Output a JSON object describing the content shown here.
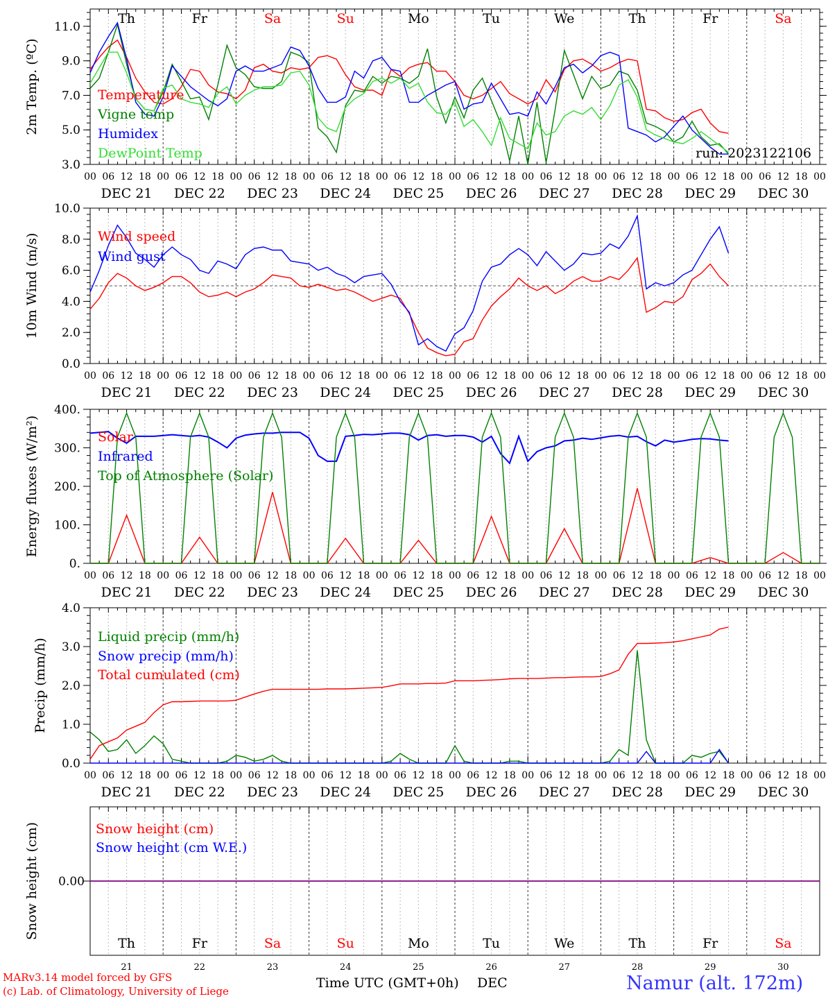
{
  "days": [
    {
      "abbr": "Th",
      "label": "DEC 21",
      "num": "21",
      "weekend": false
    },
    {
      "abbr": "Fr",
      "label": "DEC 22",
      "num": "22",
      "weekend": false
    },
    {
      "abbr": "Sa",
      "label": "DEC 23",
      "num": "23",
      "weekend": true
    },
    {
      "abbr": "Su",
      "label": "DEC 24",
      "num": "24",
      "weekend": true
    },
    {
      "abbr": "Mo",
      "label": "DEC 25",
      "num": "25",
      "weekend": false
    },
    {
      "abbr": "Tu",
      "label": "DEC 26",
      "num": "26",
      "weekend": false
    },
    {
      "abbr": "We",
      "label": "DEC 27",
      "num": "27",
      "weekend": false
    },
    {
      "abbr": "Th",
      "label": "DEC 28",
      "num": "28",
      "weekend": false
    },
    {
      "abbr": "Fr",
      "label": "DEC 29",
      "num": "29",
      "weekend": false
    },
    {
      "abbr": "Sa",
      "label": "DEC 30",
      "num": "30",
      "weekend": true
    }
  ],
  "hour_ticks": [
    "00",
    "06",
    "12",
    "18"
  ],
  "last_tick": "00",
  "colors": {
    "weekday": "#000000",
    "weekend": "#ff0000",
    "red": "#ff0000",
    "green": "#008000",
    "blue": "#0000ff",
    "lightgreen": "#33dd33",
    "purple": "#800080",
    "title": "#3333ff"
  },
  "footer": {
    "model": "MARv3.14 model forced by GFS",
    "credit": "(c) Lab. of Climatology, University of Liege",
    "xlabel": "Time UTC (GMT+0h)",
    "month": "DEC",
    "location": "Namur (alt. 172m)"
  },
  "chart_data": [
    {
      "type": "line",
      "ylabel": "2m Temp. (ºC)",
      "ylim": [
        3,
        12
      ],
      "yticks": [
        "3.0",
        "5.0",
        "7.0",
        "9.0",
        "11.0"
      ],
      "annotation": "run: 2023122106",
      "x_step_hours": 3,
      "series": [
        {
          "name": "Temperature",
          "color": "red",
          "values": [
            8.5,
            9.2,
            9.8,
            10.2,
            9.2,
            8.0,
            7.2,
            6.6,
            6.5,
            6.8,
            7.5,
            8.5,
            8.4,
            7.6,
            7.2,
            7.1,
            6.8,
            7.3,
            8.6,
            8.8,
            8.4,
            8.3,
            8.6,
            8.5,
            8.6,
            9.2,
            9.3,
            9.1,
            8.2,
            7.5,
            7.3,
            7.3,
            7.0,
            8.5,
            8.1,
            8.6,
            8.8,
            8.9,
            8.4,
            8.4,
            7.8,
            7.0,
            6.8,
            7.0,
            7.4,
            7.8,
            7.1,
            6.8,
            6.5,
            6.8,
            7.9,
            7.2,
            8.5,
            9.0,
            9.1,
            8.8,
            8.4,
            8.6,
            8.9,
            9.1,
            9.0,
            6.2,
            6.1,
            5.7,
            5.5,
            5.6,
            6.0,
            6.2,
            5.4,
            4.9,
            4.8
          ]
        },
        {
          "name": "Vigne temp",
          "color": "green",
          "values": [
            7.4,
            8.0,
            9.5,
            11.1,
            8.8,
            6.8,
            6.2,
            6.1,
            7.2,
            8.8,
            7.8,
            6.8,
            6.9,
            5.6,
            7.6,
            9.9,
            8.6,
            8.2,
            7.5,
            7.4,
            7.4,
            7.8,
            9.5,
            9.3,
            8.9,
            5.1,
            4.6,
            3.7,
            6.4,
            7.3,
            7.2,
            8.1,
            7.7,
            8.1,
            8.0,
            7.7,
            8.1,
            9.7,
            6.9,
            5.4,
            6.9,
            5.7,
            7.3,
            8.0,
            6.7,
            5.4,
            3.2,
            5.8,
            2.9,
            6.6,
            3.1,
            6.2,
            9.6,
            8.2,
            6.8,
            8.1,
            7.4,
            7.6,
            8.4,
            8.2,
            7.3,
            5.4,
            5.2,
            4.9,
            4.3,
            4.6,
            5.5,
            4.6,
            4.1,
            4.2,
            3.6
          ]
        },
        {
          "name": "Humidex",
          "color": "blue",
          "values": [
            8.3,
            9.5,
            10.4,
            11.2,
            9.1,
            6.6,
            5.9,
            5.8,
            6.9,
            8.7,
            8.1,
            7.5,
            7.1,
            6.7,
            6.4,
            6.8,
            8.4,
            8.7,
            8.4,
            8.4,
            8.6,
            8.8,
            9.8,
            9.6,
            8.7,
            7.4,
            6.6,
            6.6,
            6.9,
            8.4,
            8.0,
            9.0,
            9.2,
            8.5,
            8.4,
            6.6,
            6.6,
            7.0,
            7.3,
            7.6,
            7.8,
            6.2,
            6.5,
            6.6,
            7.7,
            6.8,
            5.9,
            6.0,
            5.8,
            7.2,
            6.5,
            7.5,
            8.6,
            8.8,
            8.3,
            8.7,
            9.3,
            9.5,
            9.3,
            5.1,
            4.9,
            4.7,
            4.3,
            4.6,
            5.2,
            5.8,
            5.0,
            4.5,
            4.0,
            3.6,
            3.6
          ]
        },
        {
          "name": "DewPoint Temp",
          "color": "lightgreen",
          "values": [
            7.7,
            8.6,
            9.5,
            9.5,
            8.3,
            6.8,
            6.2,
            6.1,
            7.4,
            7.6,
            6.8,
            6.6,
            6.5,
            6.3,
            7.1,
            7.5,
            6.5,
            7.0,
            7.3,
            7.5,
            7.5,
            7.6,
            8.3,
            8.4,
            7.6,
            5.7,
            5.1,
            4.9,
            6.3,
            6.8,
            7.1,
            7.8,
            8.0,
            7.7,
            8.0,
            7.4,
            7.7,
            6.6,
            6.0,
            5.9,
            6.6,
            5.2,
            5.6,
            4.9,
            4.1,
            5.7,
            4.5,
            4.2,
            3.9,
            5.4,
            4.7,
            4.9,
            5.8,
            6.1,
            5.9,
            6.3,
            5.6,
            6.4,
            7.6,
            7.9,
            6.9,
            5.0,
            4.7,
            4.5,
            4.3,
            4.2,
            4.5,
            4.9,
            4.5,
            4.1,
            3.7
          ]
        }
      ]
    },
    {
      "type": "line",
      "ylabel": "10m Wind (m/s)",
      "ylim": [
        0,
        10
      ],
      "yticks": [
        "0.0",
        "2.0",
        "4.0",
        "6.0",
        "8.0",
        "10.0"
      ],
      "reference_line": 5,
      "x_step_hours": 3,
      "series": [
        {
          "name": "Wind speed",
          "color": "red",
          "values": [
            3.5,
            4.2,
            5.2,
            5.8,
            5.5,
            5.0,
            4.7,
            4.9,
            5.2,
            5.6,
            5.6,
            5.2,
            4.6,
            4.3,
            4.4,
            4.6,
            4.3,
            4.6,
            4.8,
            5.2,
            5.7,
            5.6,
            5.5,
            5.0,
            4.9,
            5.1,
            4.9,
            4.7,
            4.8,
            4.6,
            4.3,
            4.0,
            4.2,
            4.4,
            4.2,
            3.2,
            2.0,
            1.0,
            0.7,
            0.5,
            0.6,
            1.4,
            1.6,
            2.8,
            3.7,
            4.3,
            4.8,
            5.5,
            5.0,
            4.7,
            5.0,
            4.5,
            4.8,
            5.3,
            5.6,
            5.3,
            5.3,
            5.6,
            5.4,
            6.0,
            6.8,
            3.3,
            3.6,
            4.0,
            3.9,
            4.3,
            5.4,
            5.8,
            6.4,
            5.6,
            5.0
          ]
        },
        {
          "name": "Wind gust",
          "color": "blue",
          "values": [
            4.6,
            6.0,
            7.6,
            8.9,
            8.1,
            7.1,
            6.7,
            6.2,
            7.0,
            7.5,
            7.0,
            6.7,
            6.0,
            5.8,
            6.6,
            6.4,
            6.1,
            7.0,
            7.4,
            7.5,
            7.3,
            7.3,
            6.6,
            6.5,
            6.4,
            6.0,
            6.2,
            5.8,
            5.6,
            5.2,
            5.6,
            5.7,
            5.8,
            5.1,
            4.0,
            3.3,
            1.2,
            1.6,
            1.1,
            0.8,
            1.9,
            2.3,
            3.4,
            5.3,
            6.2,
            6.4,
            7.0,
            7.4,
            7.0,
            6.3,
            7.2,
            6.6,
            6.0,
            6.4,
            7.1,
            7.0,
            7.1,
            7.7,
            7.4,
            8.2,
            9.5,
            4.8,
            5.2,
            5.0,
            5.2,
            5.7,
            6.0,
            7.0,
            8.0,
            8.8,
            7.1
          ]
        }
      ]
    },
    {
      "type": "line",
      "ylabel": "Energy fluxes (W/m²)",
      "ylim": [
        0,
        400
      ],
      "yticks": [
        "0.",
        "100.",
        "200.",
        "300.",
        "400."
      ],
      "x_step_hours": 3,
      "solar_peaks": [
        125,
        68,
        185,
        65,
        60,
        122,
        90,
        195,
        15,
        28
      ],
      "toa_peak": 390,
      "series": [
        {
          "name": "Solar",
          "color": "red",
          "values": []
        },
        {
          "name": "Infrared",
          "color": "blue",
          "values": [
            338,
            340,
            342,
            325,
            312,
            330,
            330,
            330,
            332,
            334,
            332,
            330,
            332,
            328,
            315,
            300,
            325,
            333,
            336,
            338,
            338,
            340,
            340,
            340,
            325,
            280,
            265,
            265,
            330,
            332,
            335,
            334,
            336,
            338,
            338,
            334,
            320,
            332,
            334,
            330,
            332,
            332,
            328,
            315,
            330,
            285,
            260,
            330,
            265,
            290,
            300,
            305,
            318,
            320,
            325,
            322,
            326,
            330,
            332,
            328,
            330,
            316,
            305,
            320,
            315,
            318,
            322,
            324,
            323,
            320,
            318
          ]
        },
        {
          "name": "Top of Atmosphere (Solar)",
          "color": "green",
          "values": []
        }
      ]
    },
    {
      "type": "line",
      "ylabel": "Precip (mm/h)",
      "ylim": [
        0,
        4
      ],
      "yticks": [
        "0.0",
        "1.0",
        "2.0",
        "3.0",
        "4.0"
      ],
      "x_step_hours": 3,
      "series": [
        {
          "name": "Liquid precip (mm/h)",
          "color": "green",
          "values": [
            0.8,
            0.6,
            0.3,
            0.35,
            0.6,
            0.25,
            0.45,
            0.7,
            0.5,
            0.1,
            0.05,
            0.0,
            0.0,
            0.0,
            0.0,
            0.05,
            0.2,
            0.15,
            0.05,
            0.1,
            0.2,
            0.05,
            0.0,
            0.0,
            0.0,
            0.0,
            0.0,
            0.0,
            0.0,
            0.0,
            0.0,
            0.0,
            0.0,
            0.05,
            0.25,
            0.1,
            0.0,
            0.0,
            0.0,
            0.0,
            0.45,
            0.05,
            0.0,
            0.0,
            0.0,
            0.0,
            0.05,
            0.05,
            0.0,
            0.0,
            0.0,
            0.0,
            0.0,
            0.0,
            0.0,
            0.0,
            0.0,
            0.05,
            0.35,
            0.2,
            2.9,
            0.6,
            0.0,
            0.0,
            0.0,
            0.0,
            0.2,
            0.15,
            0.25,
            0.3,
            0.0
          ]
        },
        {
          "name": "Snow precip (mm/h)",
          "color": "blue",
          "values": [
            0,
            0,
            0,
            0,
            0,
            0,
            0,
            0,
            0,
            0,
            0,
            0,
            0,
            0,
            0,
            0,
            0,
            0,
            0,
            0,
            0,
            0,
            0,
            0,
            0,
            0,
            0,
            0,
            0,
            0,
            0,
            0,
            0,
            0,
            0,
            0,
            0,
            0,
            0,
            0,
            0,
            0,
            0,
            0,
            0,
            0,
            0,
            0,
            0,
            0,
            0,
            0,
            0,
            0,
            0,
            0,
            0,
            0,
            0,
            0,
            0,
            0.3,
            0,
            0,
            0,
            0,
            0,
            0,
            0,
            0.35,
            0
          ]
        },
        {
          "name": "Total cumulated (cm)",
          "color": "red",
          "values": [
            0.1,
            0.45,
            0.55,
            0.65,
            0.85,
            0.95,
            1.05,
            1.3,
            1.5,
            1.58,
            1.58,
            1.59,
            1.6,
            1.6,
            1.6,
            1.6,
            1.62,
            1.7,
            1.78,
            1.85,
            1.9,
            1.9,
            1.9,
            1.9,
            1.9,
            1.9,
            1.91,
            1.91,
            1.91,
            1.92,
            1.93,
            1.94,
            1.95,
            1.99,
            2.04,
            2.04,
            2.04,
            2.05,
            2.05,
            2.06,
            2.12,
            2.12,
            2.12,
            2.13,
            2.14,
            2.15,
            2.17,
            2.18,
            2.18,
            2.18,
            2.19,
            2.2,
            2.2,
            2.21,
            2.22,
            2.22,
            2.23,
            2.3,
            2.4,
            2.8,
            3.08,
            3.08,
            3.09,
            3.1,
            3.12,
            3.15,
            3.2,
            3.25,
            3.3,
            3.45,
            3.5
          ]
        }
      ]
    },
    {
      "type": "line",
      "ylabel": "Snow height (cm)",
      "ylim": [
        -1,
        1
      ],
      "yticks": [
        "0.00"
      ],
      "x_step_hours": 3,
      "series": [
        {
          "name": "Snow height (cm)",
          "color": "red",
          "values": [
            0,
            0
          ]
        },
        {
          "name": "Snow height (cm W.E.)",
          "color": "blue",
          "values": [
            0,
            0
          ]
        }
      ]
    }
  ]
}
